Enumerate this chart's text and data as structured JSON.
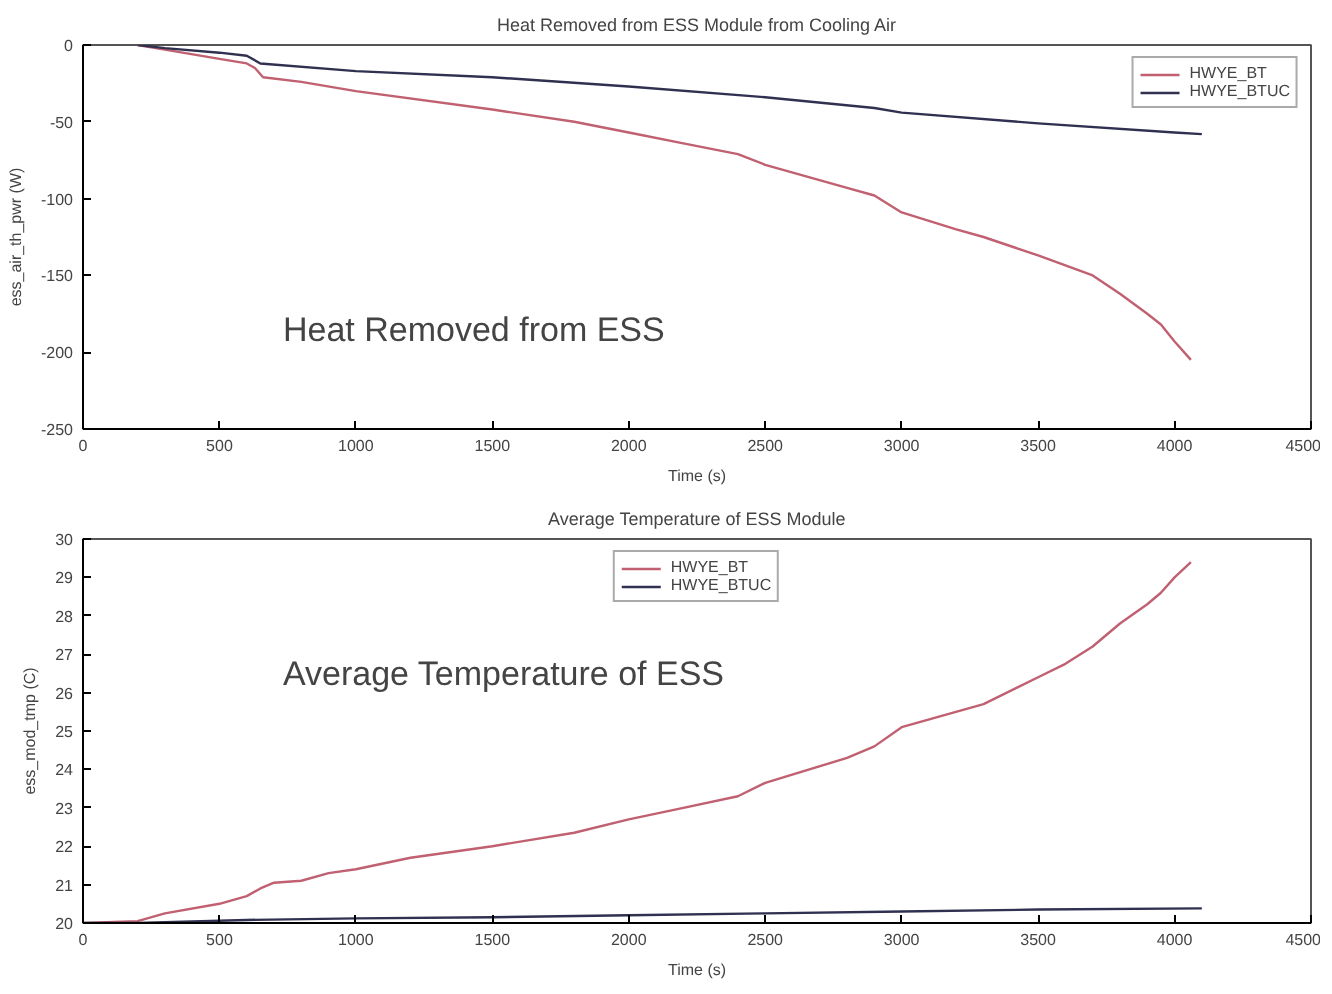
{
  "chart_data": [
    {
      "type": "line",
      "title": "Heat Removed from ESS Module from Cooling Air",
      "xlabel": "Time (s)",
      "ylabel": "ess_air_th_pwr (W)",
      "annotations": [
        "Heat Removed from ESS"
      ],
      "xlim": [
        0,
        4500
      ],
      "xticks": [
        0,
        500,
        1000,
        1500,
        2000,
        2500,
        3000,
        3500,
        4000,
        4500
      ],
      "ylim": [
        -250,
        0
      ],
      "yticks": [
        -250,
        -200,
        -150,
        -100,
        -50,
        0
      ],
      "grid": false,
      "legend": "top right",
      "line_style": "solid",
      "series": [
        {
          "name": "HWYE_BT",
          "color": "#c06070",
          "x": [
            200,
            300,
            500,
            600,
            630,
            660,
            800,
            1000,
            1500,
            1800,
            2000,
            2200,
            2400,
            2500,
            2800,
            2900,
            3000,
            3200,
            3300,
            3500,
            3700,
            3800,
            3900,
            3950,
            4000,
            4060
          ],
          "values": [
            0,
            -3,
            -9,
            -12,
            -15,
            -21,
            -24,
            -30,
            -42,
            -50,
            -57,
            -64,
            -71,
            -78,
            -93,
            -98,
            -109,
            -120,
            -125,
            -137,
            -150,
            -162,
            -175,
            -182,
            -193,
            -205
          ]
        },
        {
          "name": "HWYE_BTUC",
          "color": "#303050",
          "x": [
            200,
            300,
            500,
            600,
            650,
            1000,
            1500,
            2000,
            2500,
            2900,
            3000,
            3500,
            4000,
            4100
          ],
          "values": [
            0,
            -2,
            -5,
            -7,
            -12,
            -17,
            -21,
            -27,
            -34,
            -41,
            -44,
            -51,
            -57,
            -58
          ]
        }
      ]
    },
    {
      "type": "line",
      "title": "Average Temperature of ESS Module",
      "xlabel": "Time (s)",
      "ylabel": "ess_mod_tmp (C)",
      "annotations": [
        "Average Temperature of ESS"
      ],
      "xlim": [
        0,
        4500
      ],
      "xticks": [
        0,
        500,
        1000,
        1500,
        2000,
        2500,
        3000,
        3500,
        4000,
        4500
      ],
      "ylim": [
        20,
        30
      ],
      "yticks": [
        20,
        21,
        22,
        23,
        24,
        25,
        26,
        27,
        28,
        29,
        30
      ],
      "grid": false,
      "legend": "top",
      "line_style": "solid",
      "series": [
        {
          "name": "HWYE_BT",
          "color": "#c06070",
          "x": [
            0,
            200,
            300,
            500,
            600,
            650,
            700,
            800,
            900,
            1000,
            1200,
            1500,
            1800,
            2000,
            2200,
            2400,
            2500,
            2800,
            2900,
            3000,
            3300,
            3500,
            3600,
            3700,
            3800,
            3900,
            3950,
            4000,
            4060
          ],
          "values": [
            20,
            20.05,
            20.25,
            20.5,
            20.7,
            20.9,
            21.05,
            21.1,
            21.3,
            21.4,
            21.7,
            22.0,
            22.35,
            22.7,
            23.0,
            23.3,
            23.65,
            24.3,
            24.6,
            25.1,
            25.7,
            26.4,
            26.75,
            27.2,
            27.8,
            28.3,
            28.6,
            29.0,
            29.4
          ]
        },
        {
          "name": "HWYE_BTUC",
          "color": "#303050",
          "x": [
            0,
            200,
            300,
            600,
            1000,
            1500,
            2000,
            2500,
            3000,
            3500,
            4100
          ],
          "values": [
            20,
            20,
            20.02,
            20.08,
            20.12,
            20.15,
            20.2,
            20.25,
            20.3,
            20.35,
            20.38
          ]
        }
      ]
    }
  ]
}
